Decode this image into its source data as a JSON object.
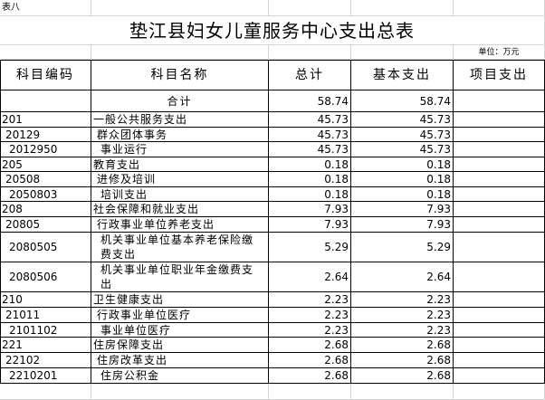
{
  "header": {
    "label": "表八",
    "title": "垫江县妇女儿童服务中心支出总表",
    "unit": "单位：万元"
  },
  "table": {
    "columns": [
      "科目编码",
      "科目名称",
      "总计",
      "基本支出",
      "项目支出"
    ],
    "rows": [
      {
        "name": "合计",
        "total": 58.74,
        "basic": 58.74
      },
      {
        "code": "201",
        "name": "一般公共服务支出",
        "total": 45.73,
        "basic": 45.73
      },
      {
        "code": "20129",
        "name": "群众团体事务",
        "total": 45.73,
        "basic": 45.73
      },
      {
        "code": "2012950",
        "name": "事业运行",
        "total": 45.73,
        "basic": 45.73
      },
      {
        "code": "205",
        "name": "教育支出",
        "total": 0.18,
        "basic": 0.18
      },
      {
        "code": "20508",
        "name": "进修及培训",
        "total": 0.18,
        "basic": 0.18
      },
      {
        "code": "2050803",
        "name": "培训支出",
        "total": 0.18,
        "basic": 0.18
      },
      {
        "code": "208",
        "name": "社会保障和就业支出",
        "total": 7.93,
        "basic": 7.93
      },
      {
        "code": "20805",
        "name": "行政事业单位养老支出",
        "total": 7.93,
        "basic": 7.93
      },
      {
        "code": "2080505",
        "name": "机关事业单位基本养老保险缴费支出",
        "total": 5.29,
        "basic": 5.29
      },
      {
        "code": "2080506",
        "name": "机关事业单位职业年金缴费支出",
        "total": 2.64,
        "basic": 2.64
      },
      {
        "code": "210",
        "name": "卫生健康支出",
        "total": 2.23,
        "basic": 2.23
      },
      {
        "code": "21011",
        "name": "行政事业单位医疗",
        "total": 2.23,
        "basic": 2.23
      },
      {
        "code": "2101102",
        "name": "事业单位医疗",
        "total": 2.23,
        "basic": 2.23
      },
      {
        "code": "221",
        "name": "住房保障支出",
        "total": 2.68,
        "basic": 2.68
      },
      {
        "code": "22102",
        "name": "住房改革支出",
        "total": 2.68,
        "basic": 2.68
      },
      {
        "code": "2210201",
        "name": "住房公积金",
        "total": 2.68,
        "basic": 2.68
      }
    ]
  }
}
